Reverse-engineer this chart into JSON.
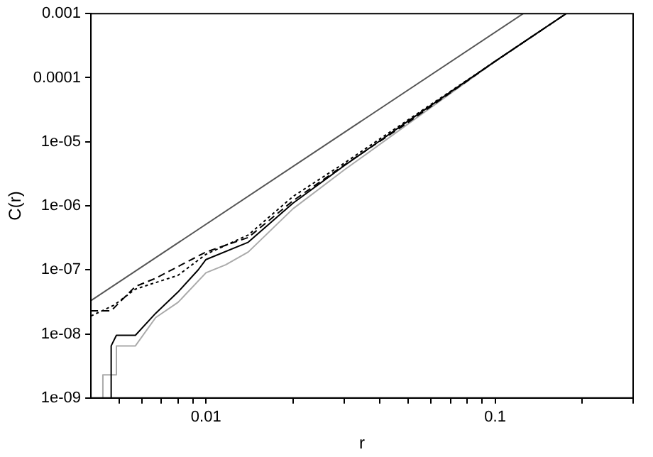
{
  "chart_data": {
    "type": "line",
    "xlabel": "r",
    "ylabel": "C(r)",
    "log": "xy",
    "grid": false,
    "legend": false,
    "marker": "none",
    "xlim": [
      0.004,
      0.3
    ],
    "ylim": [
      1e-09,
      0.001
    ],
    "xticks": [
      {
        "value": 0.005,
        "label": null
      },
      {
        "value": 0.006,
        "label": null
      },
      {
        "value": 0.007,
        "label": null
      },
      {
        "value": 0.008,
        "label": null
      },
      {
        "value": 0.009,
        "label": null
      },
      0.01,
      {
        "value": 0.02,
        "label": null
      },
      {
        "value": 0.03,
        "label": null
      },
      {
        "value": 0.04,
        "label": null
      },
      {
        "value": 0.05,
        "label": null
      },
      {
        "value": 0.06,
        "label": null
      },
      {
        "value": 0.07,
        "label": null
      },
      {
        "value": 0.08,
        "label": null
      },
      {
        "value": 0.09,
        "label": null
      },
      0.1,
      {
        "value": 0.2,
        "label": null
      },
      {
        "value": 0.3,
        "label": null
      }
    ],
    "yticks": [
      {
        "value": 1e-09,
        "label": "1e-09"
      },
      {
        "value": 1e-08,
        "label": "1e-08"
      },
      {
        "value": 1e-07,
        "label": "1e-07"
      },
      {
        "value": 1e-06,
        "label": "1e-06"
      },
      {
        "value": 1e-05,
        "label": "1e-05"
      },
      0.0001,
      0.001
    ],
    "series": [
      {
        "color": "#555555",
        "line_style": "solid",
        "x": [
          0.004,
          0.125
        ],
        "values": [
          3.3e-08,
          0.001
        ]
      },
      {
        "color": "#000000",
        "line_style": "dashed",
        "x": [
          0.004,
          0.0047,
          0.0057,
          0.0067,
          0.01,
          0.014,
          0.02,
          0.03,
          0.05,
          0.1,
          0.176
        ],
        "values": [
          2.3e-08,
          2.3e-08,
          5.5e-08,
          7.4e-08,
          1.9e-07,
          3.2e-07,
          1.2e-06,
          4.3e-06,
          2e-05,
          0.00018,
          0.001
        ]
      },
      {
        "color": "#000000",
        "line_style": "dotted",
        "x": [
          0.004,
          0.0048,
          0.0057,
          0.008,
          0.01,
          0.014,
          0.02,
          0.03,
          0.05,
          0.1,
          0.176
        ],
        "values": [
          1.9e-08,
          2.8e-08,
          5e-08,
          8.2e-08,
          1.75e-07,
          3.5e-07,
          1.4e-06,
          4.6e-06,
          2.2e-05,
          0.00018,
          0.001
        ]
      },
      {
        "color": "#000000",
        "line_style": "solid",
        "x": [
          0.0047,
          0.0047,
          0.0049,
          0.0057,
          0.0067,
          0.008,
          0.0094,
          0.01,
          0.014,
          0.02,
          0.03,
          0.05,
          0.1,
          0.176
        ],
        "values": [
          1e-09,
          6.5e-09,
          9.5e-09,
          9.5e-09,
          2.1e-08,
          4.5e-08,
          1e-07,
          1.45e-07,
          2.7e-07,
          1.1e-06,
          4.2e-06,
          2.1e-05,
          0.00018,
          0.001
        ]
      },
      {
        "color": "#aaaaaa",
        "line_style": "solid",
        "x": [
          0.0044,
          0.0044,
          0.0049,
          0.0049,
          0.0057,
          0.0067,
          0.008,
          0.01,
          0.0117,
          0.014,
          0.02,
          0.03,
          0.05,
          0.1,
          0.176
        ],
        "values": [
          1e-09,
          2.3e-09,
          2.3e-09,
          6.5e-09,
          6.5e-09,
          1.8e-08,
          3.1e-08,
          9e-08,
          1.2e-07,
          1.9e-07,
          9e-07,
          3.6e-06,
          1.9e-05,
          0.00018,
          0.001
        ]
      }
    ]
  }
}
